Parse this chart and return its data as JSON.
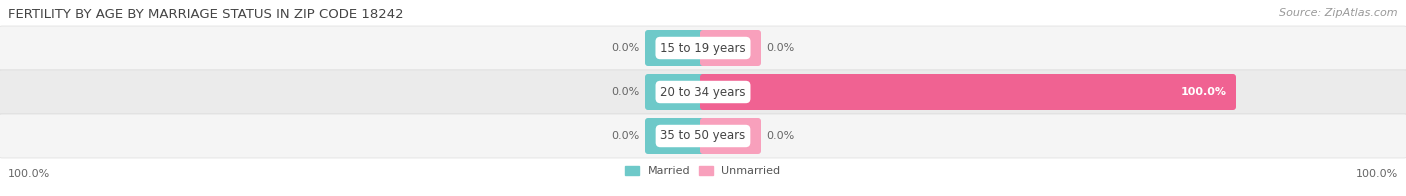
{
  "title": "FERTILITY BY AGE BY MARRIAGE STATUS IN ZIP CODE 18242",
  "source": "Source: ZipAtlas.com",
  "categories": [
    "15 to 19 years",
    "20 to 34 years",
    "35 to 50 years"
  ],
  "married_values": [
    0.0,
    0.0,
    0.0
  ],
  "unmarried_values": [
    0.0,
    100.0,
    0.0
  ],
  "married_color": "#6EC9C9",
  "unmarried_color_full": "#F06292",
  "unmarried_color_stub": "#F8A0BC",
  "row_bg_color_odd": "#F5F5F5",
  "row_bg_color_even": "#EBEBEB",
  "title_fontsize": 9.5,
  "source_fontsize": 8,
  "label_fontsize": 8,
  "category_fontsize": 8.5,
  "legend_fontsize": 8,
  "left_label": "100.0%",
  "right_label": "100.0%",
  "background_color": "#FFFFFF"
}
